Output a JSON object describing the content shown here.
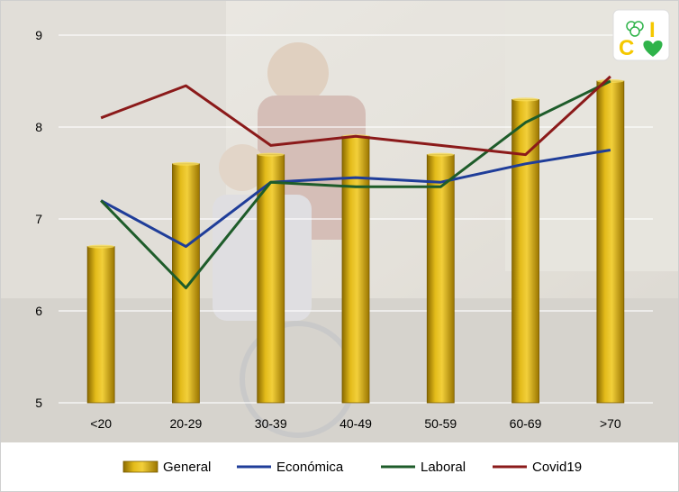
{
  "chart_data": {
    "type": "bar",
    "categories": [
      "<20",
      "20-29",
      "30-39",
      "40-49",
      "50-59",
      "60-69",
      ">70"
    ],
    "ylim": [
      5,
      9
    ],
    "yticks": [
      5,
      6,
      7,
      8,
      9
    ],
    "grid": true,
    "legend": "bottom",
    "series": [
      {
        "name": "General",
        "kind": "bar",
        "color": "#c9a000",
        "values": [
          6.7,
          7.6,
          7.7,
          7.9,
          7.7,
          8.3,
          8.5
        ]
      },
      {
        "name": "Económica",
        "kind": "line",
        "color": "#1f3d99",
        "values": [
          7.2,
          6.7,
          7.4,
          7.45,
          7.4,
          7.6,
          7.75
        ]
      },
      {
        "name": "Laboral",
        "kind": "line",
        "color": "#1e5c2a",
        "values": [
          7.2,
          6.25,
          7.4,
          7.35,
          7.35,
          8.05,
          8.5
        ]
      },
      {
        "name": "Covid19",
        "kind": "line",
        "color": "#8b1a1a",
        "values": [
          8.1,
          8.45,
          7.8,
          7.9,
          7.8,
          7.7,
          8.55
        ]
      }
    ]
  },
  "logo": {
    "letters": [
      "I",
      "C"
    ],
    "icons": [
      "clover-icon",
      "heart-icon"
    ],
    "colors": [
      "#f5c800",
      "#2fb34a"
    ]
  }
}
